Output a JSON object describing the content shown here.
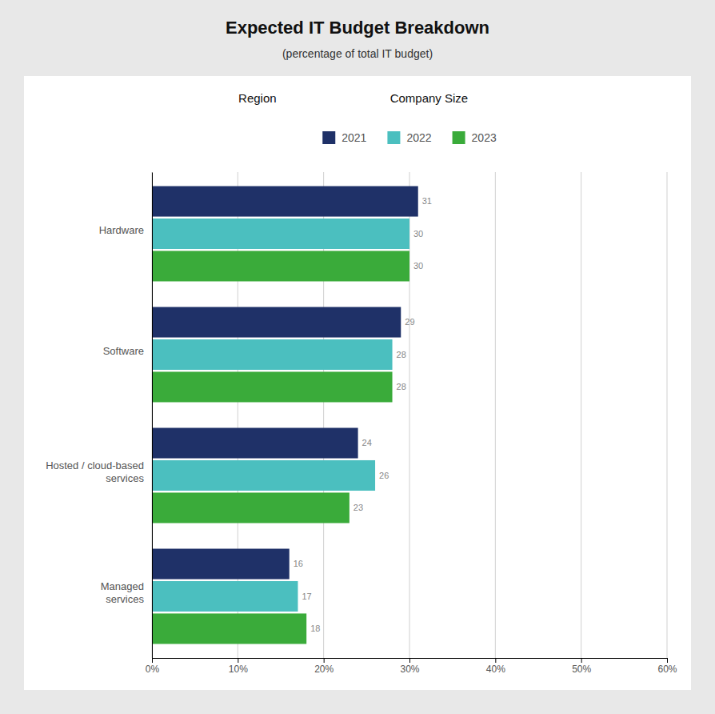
{
  "chart_data": {
    "type": "bar",
    "orientation": "horizontal",
    "title": "Expected IT Budget Breakdown",
    "subtitle": "(percentage of total IT budget)",
    "annotations": [
      "Region",
      "Company Size"
    ],
    "categories": [
      "Hardware",
      "Software",
      "Hosted / cloud-based\nservices",
      "Managed\nservices"
    ],
    "series": [
      {
        "name": "2021",
        "color": "#1f3168",
        "values": [
          31,
          29,
          24,
          16
        ]
      },
      {
        "name": "2022",
        "color": "#4bbfbf",
        "values": [
          30,
          28,
          26,
          17
        ]
      },
      {
        "name": "2023",
        "color": "#3aab3a",
        "values": [
          30,
          28,
          23,
          18
        ]
      }
    ],
    "xlim": [
      0,
      60
    ],
    "xticks": [
      {
        "value": 0,
        "label": "0%"
      },
      {
        "value": 10,
        "label": "10%"
      },
      {
        "value": 20,
        "label": "20%"
      },
      {
        "value": 30,
        "label": "30%"
      },
      {
        "value": 40,
        "label": "40%"
      },
      {
        "value": 50,
        "label": "50%"
      },
      {
        "value": 60,
        "label": "60%"
      }
    ],
    "grid": true,
    "legend": "top",
    "data_labels": true
  }
}
